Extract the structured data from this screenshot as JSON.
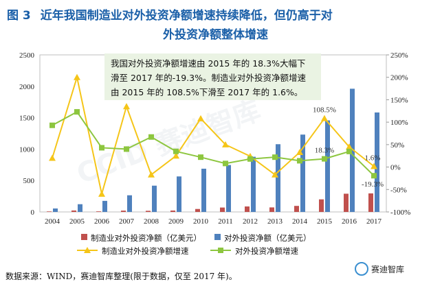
{
  "figure": {
    "number": "图 3",
    "title_line1": "近年我国制造业对外投资净额增速持续降低，但仍高于对",
    "title_line2": "外投资净额整体增速"
  },
  "annotation": {
    "line1": "我国对外投资净额增速由 2015 年的 18.3%大幅下",
    "line2": "滑至 2017 年的-19.3%。制造业对外投资净额增速",
    "line3": "由 2015 年的 108.5%下滑至 2017 年的 1.6%。"
  },
  "source": "数据来源：WIND，赛迪智库整理(限于数据，仅至 2017 年)。",
  "logo_text": "赛迪智库",
  "watermark": "CCID 赛迪智库",
  "colors": {
    "mfg_bar": "#c0504d",
    "total_bar": "#4f81bd",
    "mfg_line": "#f5c518",
    "total_line": "#8dc63f",
    "title": "#1a5fa8",
    "annotation_bg": "#eaf3e3"
  },
  "chart_data": {
    "type": "bar",
    "categories": [
      "2004",
      "2005",
      "2006",
      "2007",
      "2008",
      "2009",
      "2010",
      "2011",
      "2012",
      "2013",
      "2014",
      "2015",
      "2016",
      "2017"
    ],
    "ylim": [
      0,
      2500
    ],
    "y2lim": [
      -100,
      250
    ],
    "yticks": [
      "0",
      "500",
      "1000",
      "1500",
      "2000",
      "2500"
    ],
    "y2ticks": [
      "-100%",
      "-50%",
      "0%",
      "50%",
      "100%",
      "150%",
      "200%",
      "250%"
    ],
    "series": [
      {
        "name": "制造业对外投资净额（亿美元）",
        "kind": "bar",
        "axis": "left",
        "values": [
          8,
          23,
          9,
          21,
          18,
          22,
          47,
          70,
          87,
          72,
          96,
          200,
          290,
          295
        ]
      },
      {
        "name": "对外投资净额（亿美元）",
        "kind": "bar",
        "axis": "left",
        "values": [
          55,
          123,
          176,
          265,
          418,
          565,
          688,
          747,
          878,
          1078,
          1231,
          1457,
          1961,
          1583
        ]
      },
      {
        "name": "制造业对外投资净额增速",
        "kind": "line",
        "axis": "right",
        "values": [
          20,
          200,
          -60,
          135,
          -17,
          25,
          108,
          50,
          24,
          -17,
          33,
          108.5,
          45,
          1.6
        ]
      },
      {
        "name": "对外投资净额增速",
        "kind": "line",
        "axis": "right",
        "values": [
          93,
          123,
          43,
          40,
          67,
          35,
          22,
          8,
          18,
          22,
          14,
          18.3,
          34.7,
          -19.3
        ]
      }
    ],
    "labels": [
      {
        "text": "108.5%",
        "series": 2,
        "index": 11,
        "pos": "above"
      },
      {
        "text": "18.3%",
        "series": 3,
        "index": 11,
        "pos": "above"
      },
      {
        "text": "1.6%",
        "series": 2,
        "index": 13,
        "pos": "above"
      },
      {
        "text": "-19.3%",
        "series": 3,
        "index": 13,
        "pos": "below"
      }
    ]
  }
}
